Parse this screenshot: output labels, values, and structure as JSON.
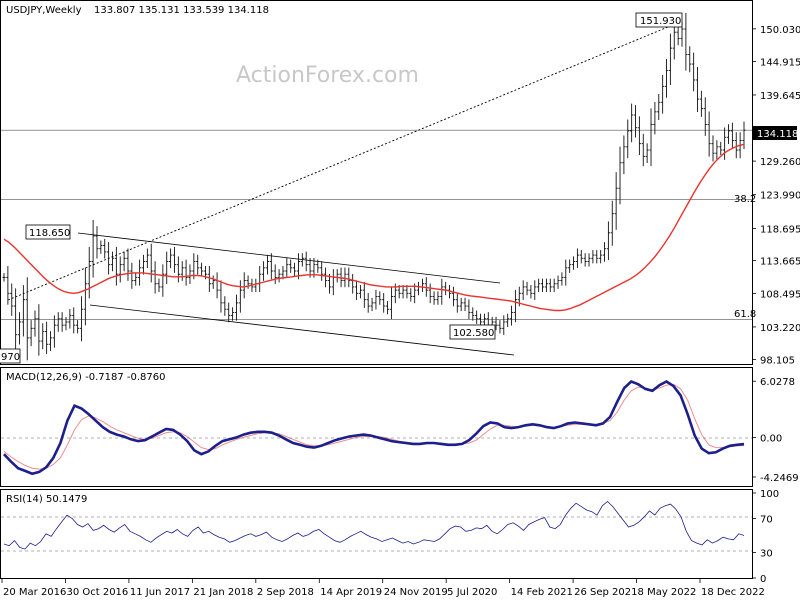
{
  "header": {
    "symbol": "USDJPY,Weekly",
    "ohlc": "133.807 135.131 133.539 134.118"
  },
  "watermark": "ActionForex.com",
  "chart_data": [
    {
      "type": "candlestick",
      "panel": "price",
      "y_ticks": [
        "150.030",
        "144.915",
        "139.645",
        "134.118",
        "129.260",
        "123.990",
        "118.695",
        "113.665",
        "108.495",
        "103.220",
        "98.105"
      ],
      "ylim": [
        97.4,
        154.4
      ],
      "current_price": "134.118",
      "x_ticks": [
        "20 Mar 2016",
        "30 Oct 2016",
        "11 Jun 2017",
        "21 Jan 2018",
        "2 Sep 2018",
        "14 Apr 2019",
        "24 Nov 2019",
        "5 Jul 2020",
        "14 Feb 2021",
        "26 Sep 2021",
        "8 May 2022",
        "18 Dec 2022"
      ],
      "annotations": {
        "high": "151.930",
        "mid_high": "118.650",
        "low": "102.580",
        "left_low": "970",
        "fib_38": "38.2",
        "fib_61": "61.8"
      },
      "levels": {
        "h_134": 134.118,
        "h_123": 123.2,
        "h_104": 104.4
      },
      "close_series": [
        111.0,
        108.5,
        106.5,
        102.0,
        104.0,
        107.5,
        101.5,
        103.0,
        104.5,
        101.0,
        102.5,
        100.5,
        101.5,
        103.5,
        104.5,
        103.5,
        104.0,
        105.0,
        103.5,
        103.0,
        106.0,
        110.0,
        113.5,
        117.5,
        115.5,
        116.0,
        115.0,
        113.0,
        114.0,
        111.5,
        113.0,
        114.0,
        112.0,
        110.5,
        111.0,
        112.5,
        113.5,
        114.5,
        112.0,
        110.0,
        109.5,
        111.5,
        113.5,
        114.5,
        113.0,
        111.5,
        112.5,
        111.0,
        112.0,
        113.5,
        112.5,
        112.0,
        111.5,
        110.0,
        110.5,
        109.0,
        107.0,
        106.0,
        105.0,
        105.5,
        107.0,
        109.0,
        110.5,
        110.0,
        109.5,
        110.0,
        111.5,
        112.5,
        113.5,
        112.0,
        111.0,
        111.5,
        112.0,
        113.0,
        112.5,
        112.0,
        113.5,
        114.0,
        113.0,
        112.0,
        113.0,
        112.5,
        111.5,
        110.5,
        109.5,
        111.0,
        111.5,
        110.5,
        111.5,
        110.5,
        109.5,
        108.5,
        109.0,
        107.5,
        106.5,
        107.0,
        108.0,
        107.5,
        106.5,
        106.0,
        108.0,
        109.0,
        108.5,
        109.0,
        108.5,
        108.0,
        109.0,
        109.5,
        110.0,
        109.0,
        108.0,
        107.5,
        108.0,
        109.5,
        109.0,
        108.5,
        107.5,
        106.5,
        107.0,
        106.5,
        105.5,
        105.0,
        104.5,
        104.0,
        104.5,
        103.5,
        104.0,
        103.5,
        103.0,
        104.0,
        104.5,
        105.5,
        107.5,
        108.5,
        109.5,
        109.0,
        108.5,
        109.5,
        110.0,
        109.5,
        110.0,
        109.5,
        110.0,
        110.5,
        111.0,
        112.5,
        113.0,
        113.5,
        114.5,
        114.0,
        113.5,
        114.0,
        114.5,
        114.0,
        114.5,
        115.5,
        118.0,
        121.0,
        125.0,
        129.0,
        131.5,
        134.0,
        136.5,
        134.5,
        132.0,
        130.0,
        131.0,
        135.0,
        137.0,
        138.5,
        141.0,
        143.5,
        147.0,
        149.5,
        148.5,
        150.0,
        146.0,
        144.5,
        142.0,
        139.0,
        137.5,
        135.0,
        132.0,
        130.5,
        131.5,
        131.0,
        133.0,
        134.0,
        132.5,
        131.0,
        132.5,
        134.118
      ],
      "sma_series": [
        117.0,
        116.5,
        115.8,
        115.0,
        114.2,
        113.4,
        112.6,
        111.8,
        111.0,
        110.3,
        109.7,
        109.2,
        108.8,
        108.6,
        108.5,
        108.6,
        108.9,
        109.2,
        109.6,
        110.0,
        110.4,
        110.8,
        111.1,
        111.3,
        111.5,
        111.6,
        111.7,
        111.7,
        111.7,
        111.6,
        111.5,
        111.4,
        111.3,
        111.2,
        111.1,
        111.1,
        111.1,
        111.2,
        111.3,
        111.3,
        111.2,
        111.0,
        110.8,
        110.5,
        110.2,
        109.9,
        109.7,
        109.6,
        109.5,
        109.6,
        109.8,
        110.0,
        110.2,
        110.4,
        110.6,
        110.8,
        110.9,
        111.0,
        111.1,
        111.2,
        111.3,
        111.4,
        111.4,
        111.4,
        111.3,
        111.2,
        111.1,
        111.0,
        110.9,
        110.8,
        110.6,
        110.4,
        110.2,
        110.0,
        109.8,
        109.7,
        109.6,
        109.5,
        109.5,
        109.5,
        109.6,
        109.6,
        109.6,
        109.6,
        109.5,
        109.4,
        109.3,
        109.2,
        109.1,
        109.0,
        108.8,
        108.6,
        108.4,
        108.2,
        108.1,
        108.0,
        107.9,
        107.8,
        107.7,
        107.6,
        107.5,
        107.4,
        107.3,
        107.1,
        106.9,
        106.7,
        106.5,
        106.3,
        106.1,
        106.0,
        105.9,
        105.8,
        105.8,
        105.9,
        106.1,
        106.4,
        106.7,
        107.1,
        107.5,
        107.9,
        108.3,
        108.7,
        109.1,
        109.5,
        109.9,
        110.3,
        110.7,
        111.2,
        111.8,
        112.5,
        113.3,
        114.2,
        115.2,
        116.3,
        117.5,
        118.8,
        120.2,
        121.6,
        123.0,
        124.4,
        125.7,
        126.9,
        128.0,
        129.0,
        129.8,
        130.5,
        131.0,
        131.4,
        131.7,
        131.9
      ],
      "sma_sample_count": 150
    },
    {
      "type": "line",
      "panel": "macd",
      "label": "MACD(12,26,9) -0.7187 -0.8760",
      "y_ticks": [
        "6.0278",
        "0.00",
        "-4.2469"
      ],
      "ylim": [
        -5.0,
        6.8
      ],
      "macd_series": [
        -1.8,
        -2.6,
        -3.3,
        -3.6,
        -3.9,
        -3.7,
        -3.2,
        -2.2,
        -0.6,
        1.8,
        3.4,
        3.1,
        2.5,
        1.8,
        1.1,
        0.6,
        0.3,
        0.1,
        -0.2,
        -0.4,
        -0.3,
        0.1,
        0.5,
        0.9,
        0.8,
        0.3,
        -0.4,
        -1.4,
        -1.8,
        -1.5,
        -0.9,
        -0.4,
        -0.2,
        0.0,
        0.3,
        0.5,
        0.6,
        0.6,
        0.5,
        0.2,
        -0.2,
        -0.6,
        -0.8,
        -1.0,
        -1.1,
        -0.9,
        -0.6,
        -0.3,
        -0.1,
        0.1,
        0.2,
        0.3,
        0.2,
        0.0,
        -0.2,
        -0.4,
        -0.5,
        -0.6,
        -0.7,
        -0.7,
        -0.6,
        -0.6,
        -0.7,
        -0.8,
        -0.8,
        -0.7,
        -0.3,
        0.4,
        1.2,
        1.6,
        1.5,
        1.1,
        1.0,
        1.1,
        1.3,
        1.4,
        1.3,
        1.1,
        1.0,
        1.2,
        1.5,
        1.6,
        1.5,
        1.4,
        1.3,
        1.5,
        2.2,
        3.8,
        5.3,
        6.0,
        5.7,
        5.2,
        5.0,
        5.6,
        6.0,
        5.5,
        4.5,
        2.5,
        0.2,
        -1.2,
        -1.7,
        -1.6,
        -1.2,
        -0.9,
        -0.8,
        -0.72
      ],
      "signal_series": [
        -1.5,
        -2.1,
        -2.6,
        -3.0,
        -3.3,
        -3.4,
        -3.3,
        -2.9,
        -2.2,
        -0.8,
        0.8,
        1.9,
        2.3,
        2.1,
        1.7,
        1.2,
        0.8,
        0.5,
        0.2,
        -0.1,
        -0.2,
        -0.1,
        0.2,
        0.5,
        0.6,
        0.5,
        0.1,
        -0.5,
        -1.1,
        -1.3,
        -1.2,
        -0.8,
        -0.5,
        -0.2,
        0.0,
        0.2,
        0.4,
        0.5,
        0.5,
        0.4,
        0.1,
        -0.2,
        -0.5,
        -0.8,
        -0.9,
        -0.9,
        -0.8,
        -0.6,
        -0.4,
        -0.2,
        0.0,
        0.1,
        0.1,
        0.1,
        0.0,
        -0.2,
        -0.4,
        -0.5,
        -0.6,
        -0.7,
        -0.7,
        -0.6,
        -0.6,
        -0.7,
        -0.7,
        -0.7,
        -0.6,
        -0.3,
        0.3,
        0.9,
        1.3,
        1.3,
        1.2,
        1.1,
        1.2,
        1.3,
        1.3,
        1.2,
        1.1,
        1.2,
        1.3,
        1.4,
        1.4,
        1.4,
        1.4,
        1.5,
        1.8,
        2.7,
        4.0,
        5.0,
        5.4,
        5.3,
        5.1,
        5.3,
        5.6,
        5.7,
        5.2,
        4.0,
        2.0,
        0.3,
        -0.8,
        -1.1,
        -1.1,
        -1.0,
        -0.9,
        -0.88
      ]
    },
    {
      "type": "line",
      "panel": "rsi",
      "label": "RSI(14) 50.1479",
      "y_ticks": [
        "100",
        "70",
        "30",
        "0"
      ],
      "ylim": [
        0,
        100
      ],
      "rsi_series": [
        40,
        38,
        44,
        36,
        34,
        41,
        38,
        43,
        52,
        49,
        58,
        66,
        74,
        70,
        63,
        60,
        64,
        56,
        58,
        62,
        57,
        54,
        59,
        63,
        55,
        52,
        49,
        45,
        42,
        47,
        51,
        55,
        53,
        57,
        52,
        49,
        56,
        60,
        53,
        55,
        51,
        48,
        46,
        42,
        44,
        47,
        50,
        52,
        49,
        51,
        54,
        48,
        45,
        43,
        46,
        50,
        53,
        49,
        51,
        55,
        57,
        52,
        48,
        44,
        42,
        45,
        49,
        52,
        55,
        51,
        48,
        46,
        43,
        45,
        47,
        44,
        41,
        43,
        40,
        42,
        45,
        44,
        43,
        46,
        52,
        58,
        61,
        60,
        55,
        56,
        59,
        58,
        62,
        55,
        52,
        57,
        63,
        65,
        61,
        56,
        63,
        66,
        69,
        71,
        60,
        58,
        63,
        74,
        82,
        88,
        84,
        80,
        78,
        74,
        85,
        90,
        84,
        76,
        68,
        60,
        62,
        66,
        72,
        79,
        74,
        82,
        85,
        87,
        81,
        72,
        55,
        44,
        41,
        39,
        45,
        41,
        44,
        48,
        46,
        45,
        52,
        50
      ]
    }
  ]
}
